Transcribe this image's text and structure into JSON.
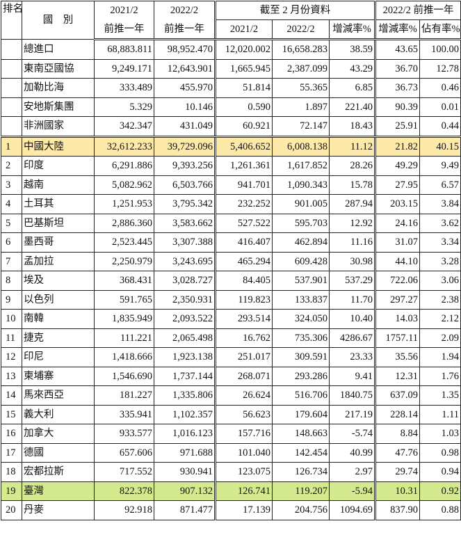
{
  "headers": {
    "rank": "排名",
    "country": "國　別",
    "col1_top": "2021/2",
    "col1_bottom": "前推一年",
    "col2_top": "2022/2",
    "col2_bottom": "前推一年",
    "group_feb": "截至 2 月份資料",
    "feb_2021": "2021/2",
    "feb_2022": "2022/2",
    "feb_change": "增減率%",
    "group_trailing": "2022/2 前推一年",
    "trailing_change": "增減率%",
    "trailing_share": "佔有率%"
  },
  "summary_rows": [
    {
      "name": "總進口",
      "v1": "68,883.811",
      "v2": "98,952.470",
      "v3": "12,020.002",
      "v4": "16,658.283",
      "v5": "38.59",
      "v6": "43.65",
      "v7": "100.00"
    },
    {
      "name": "東南亞國協",
      "v1": "9,249.171",
      "v2": "12,643.901",
      "v3": "1,665.945",
      "v4": "2,387.099",
      "v5": "43.29",
      "v6": "36.70",
      "v7": "12.78"
    },
    {
      "name": "加勒比海",
      "v1": "333.489",
      "v2": "455.970",
      "v3": "51.814",
      "v4": "55.365",
      "v5": "6.85",
      "v6": "36.73",
      "v7": "0.46"
    },
    {
      "name": "安地斯集團",
      "v1": "5.329",
      "v2": "10.146",
      "v3": "0.590",
      "v4": "1.897",
      "v5": "221.40",
      "v6": "90.39",
      "v7": "0.01"
    },
    {
      "name": "非洲國家",
      "v1": "342.347",
      "v2": "431.049",
      "v3": "60.921",
      "v4": "72.147",
      "v5": "18.43",
      "v6": "25.91",
      "v7": "0.44"
    }
  ],
  "rank_rows": [
    {
      "rank": "1",
      "name": "中國大陸",
      "v1": "32,612.233",
      "v2": "39,729.096",
      "v3": "5,406.652",
      "v4": "6,008.138",
      "v5": "11.12",
      "v6": "21.82",
      "v7": "40.15",
      "highlight": "yellow"
    },
    {
      "rank": "2",
      "name": "印度",
      "v1": "6,291.886",
      "v2": "9,393.256",
      "v3": "1,261.361",
      "v4": "1,617.852",
      "v5": "28.26",
      "v6": "49.29",
      "v7": "9.49"
    },
    {
      "rank": "3",
      "name": "越南",
      "v1": "5,082.962",
      "v2": "6,503.766",
      "v3": "941.701",
      "v4": "1,090.343",
      "v5": "15.78",
      "v6": "27.95",
      "v7": "6.57"
    },
    {
      "rank": "4",
      "name": "土耳其",
      "v1": "1,251.953",
      "v2": "3,795.342",
      "v3": "232.252",
      "v4": "901.005",
      "v5": "287.94",
      "v6": "203.15",
      "v7": "3.84"
    },
    {
      "rank": "5",
      "name": "巴基斯坦",
      "v1": "2,886.360",
      "v2": "3,583.662",
      "v3": "527.522",
      "v4": "595.703",
      "v5": "12.92",
      "v6": "24.16",
      "v7": "3.62"
    },
    {
      "rank": "6",
      "name": "墨西哥",
      "v1": "2,523.445",
      "v2": "3,307.388",
      "v3": "416.407",
      "v4": "462.894",
      "v5": "11.16",
      "v6": "31.07",
      "v7": "3.34"
    },
    {
      "rank": "7",
      "name": "孟加拉",
      "v1": "2,250.979",
      "v2": "3,243.695",
      "v3": "465.294",
      "v4": "609.428",
      "v5": "30.98",
      "v6": "44.10",
      "v7": "3.28"
    },
    {
      "rank": "8",
      "name": "埃及",
      "v1": "368.431",
      "v2": "3,028.727",
      "v3": "84.405",
      "v4": "537.901",
      "v5": "537.29",
      "v6": "722.06",
      "v7": "3.06"
    },
    {
      "rank": "9",
      "name": "以色列",
      "v1": "591.765",
      "v2": "2,350.931",
      "v3": "119.823",
      "v4": "133.837",
      "v5": "11.70",
      "v6": "297.27",
      "v7": "2.38"
    },
    {
      "rank": "10",
      "name": "南韓",
      "v1": "1,835.949",
      "v2": "2,093.522",
      "v3": "293.514",
      "v4": "324.050",
      "v5": "10.40",
      "v6": "14.03",
      "v7": "2.12"
    },
    {
      "rank": "11",
      "name": "捷克",
      "v1": "111.221",
      "v2": "2,065.498",
      "v3": "16.762",
      "v4": "735.306",
      "v5": "4286.67",
      "v6": "1757.11",
      "v7": "2.09"
    },
    {
      "rank": "12",
      "name": "印尼",
      "v1": "1,418.666",
      "v2": "1,923.138",
      "v3": "251.017",
      "v4": "309.591",
      "v5": "23.33",
      "v6": "35.56",
      "v7": "1.94"
    },
    {
      "rank": "13",
      "name": "柬埔寨",
      "v1": "1,546.690",
      "v2": "1,737.144",
      "v3": "268.071",
      "v4": "293.286",
      "v5": "9.41",
      "v6": "12.31",
      "v7": "1.76"
    },
    {
      "rank": "14",
      "name": "馬來西亞",
      "v1": "181.227",
      "v2": "1,335.806",
      "v3": "26.624",
      "v4": "516.706",
      "v5": "1840.75",
      "v6": "637.09",
      "v7": "1.35"
    },
    {
      "rank": "15",
      "name": "義大利",
      "v1": "335.941",
      "v2": "1,102.357",
      "v3": "56.623",
      "v4": "179.604",
      "v5": "217.19",
      "v6": "228.14",
      "v7": "1.11"
    },
    {
      "rank": "16",
      "name": "加拿大",
      "v1": "933.577",
      "v2": "1,016.123",
      "v3": "157.716",
      "v4": "148.663",
      "v5": "-5.74",
      "v6": "8.84",
      "v7": "1.03"
    },
    {
      "rank": "17",
      "name": "德國",
      "v1": "657.606",
      "v2": "971.688",
      "v3": "101.040",
      "v4": "142.454",
      "v5": "40.99",
      "v6": "47.76",
      "v7": "0.98"
    },
    {
      "rank": "18",
      "name": "宏都拉斯",
      "v1": "717.552",
      "v2": "930.941",
      "v3": "123.075",
      "v4": "126.734",
      "v5": "2.97",
      "v6": "29.74",
      "v7": "0.94"
    },
    {
      "rank": "19",
      "name": "臺灣",
      "v1": "822.378",
      "v2": "907.132",
      "v3": "126.741",
      "v4": "119.207",
      "v5": "-5.94",
      "v6": "10.31",
      "v7": "0.92",
      "highlight": "green"
    },
    {
      "rank": "20",
      "name": "丹麥",
      "v1": "92.918",
      "v2": "871.477",
      "v3": "17.139",
      "v4": "204.756",
      "v5": "1094.69",
      "v6": "837.90",
      "v7": "0.88"
    }
  ]
}
